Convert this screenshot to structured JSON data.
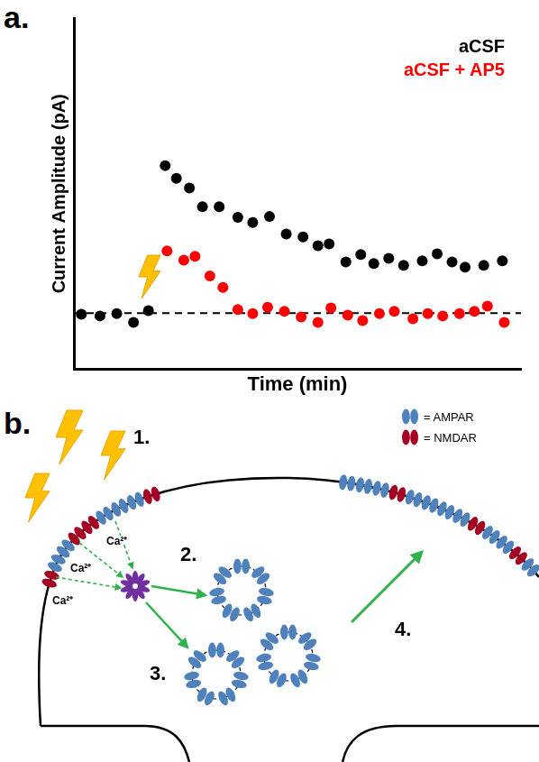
{
  "chart_data": {
    "type": "scatter",
    "panel": "a.",
    "x_label": "Time (min)",
    "y_label": "Current Amplitude (pA)",
    "xlim": [
      0,
      24
    ],
    "ylim": [
      0,
      10
    ],
    "tick_labels": false,
    "grid": false,
    "legend": "top right",
    "baseline": 1.6,
    "series": [
      {
        "name": "aCSF",
        "color": "#000000",
        "marker": "circle",
        "x": [
          0.4,
          1.4,
          2.3,
          3.2,
          4.0,
          4.9,
          5.5,
          6.2,
          6.9,
          7.8,
          8.8,
          9.6,
          10.5,
          11.4,
          12.3,
          13.1,
          13.7,
          14.6,
          15.4,
          16.1,
          16.9,
          17.7,
          18.7,
          19.5,
          20.3,
          21.0,
          22.0,
          23.0
        ],
        "values": [
          1.57,
          1.52,
          1.59,
          1.34,
          1.67,
          5.8,
          5.44,
          5.16,
          4.63,
          4.63,
          4.33,
          4.18,
          4.35,
          3.85,
          3.77,
          3.52,
          3.57,
          3.06,
          3.27,
          3.01,
          3.16,
          2.96,
          3.09,
          3.29,
          3.06,
          2.91,
          2.96,
          3.09
        ]
      },
      {
        "name": "aCSF + AP5",
        "color": "#ff0000",
        "marker": "circle",
        "x": [
          5.0,
          5.9,
          6.5,
          7.3,
          8.0,
          8.8,
          9.6,
          10.4,
          11.3,
          12.2,
          13.1,
          13.8,
          14.7,
          15.5,
          16.4,
          17.2,
          18.2,
          19.0,
          19.8,
          20.7,
          21.5,
          22.2,
          23.1
        ],
        "values": [
          3.37,
          3.11,
          3.22,
          2.66,
          2.33,
          1.7,
          1.59,
          1.77,
          1.65,
          1.49,
          1.34,
          1.75,
          1.54,
          1.39,
          1.59,
          1.65,
          1.44,
          1.59,
          1.52,
          1.59,
          1.65,
          1.8,
          1.34
        ]
      }
    ]
  },
  "diagram": {
    "panel": "b.",
    "steps": [
      "1.",
      "2.",
      "3.",
      "4."
    ],
    "ion_labels": [
      "Ca²⁺",
      "Ca²⁺",
      "Ca²⁺"
    ],
    "legend": [
      {
        "label": "= AMPAR",
        "color": "#4f81bd"
      },
      {
        "label": "= NMDAR",
        "color": "#a50021"
      }
    ]
  }
}
